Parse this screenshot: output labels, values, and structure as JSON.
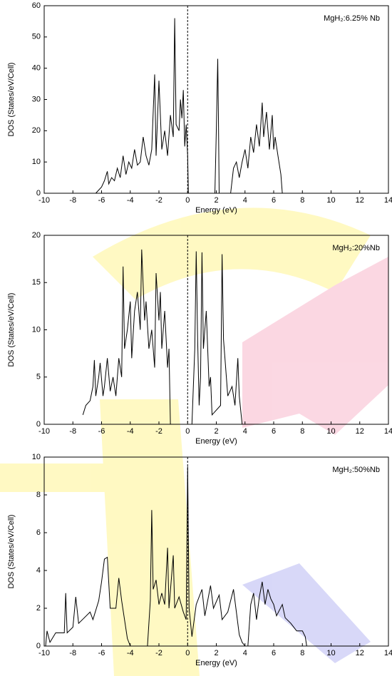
{
  "chart_data": [
    {
      "type": "line",
      "annotation": "MgH₂:6.25% Nb",
      "xlabel": "Energy (eV)",
      "ylabel": "DOS (States/eV/Cell)",
      "x": [
        -6.4,
        -6.0,
        -5.8,
        -5.6,
        -5.5,
        -5.3,
        -5.1,
        -4.9,
        -4.7,
        -4.5,
        -4.3,
        -4.1,
        -3.9,
        -3.7,
        -3.5,
        -3.3,
        -3.1,
        -2.9,
        -2.7,
        -2.5,
        -2.3,
        -2.2,
        -2.0,
        -1.8,
        -1.6,
        -1.4,
        -1.2,
        -1.0,
        -0.9,
        -0.8,
        -0.6,
        -0.5,
        -0.4,
        -0.3,
        -0.2,
        -0.1,
        0.0,
        0.05,
        null,
        1.9,
        2.0,
        2.1,
        2.15,
        2.2,
        null,
        3.0,
        3.2,
        3.4,
        3.6,
        3.8,
        4.0,
        4.2,
        4.4,
        4.6,
        4.8,
        5.0,
        5.2,
        5.3,
        5.5,
        5.7,
        5.9,
        6.0,
        6.1,
        6.3,
        6.5,
        6.6
      ],
      "series": [
        {
          "color": "#000000",
          "values": [
            0,
            2,
            4,
            7,
            3,
            5,
            4,
            8,
            5,
            12,
            6,
            10,
            8,
            14,
            9,
            10,
            18,
            12,
            9,
            14,
            38,
            12,
            36,
            14,
            20,
            12,
            25,
            18,
            56,
            22,
            20,
            30,
            24,
            33,
            15,
            22,
            12,
            0,
            null,
            0,
            20,
            43,
            24,
            0,
            null,
            0,
            8,
            10,
            5,
            10,
            14,
            8,
            18,
            13,
            22,
            15,
            29,
            18,
            26,
            14,
            25,
            14,
            18,
            12,
            6,
            0
          ]
        }
      ],
      "xlim": [
        -10,
        14
      ],
      "ylim": [
        0,
        60
      ],
      "xticks": [
        -10,
        -8,
        -6,
        -4,
        -2,
        0,
        2,
        4,
        6,
        8,
        10,
        12,
        14
      ],
      "yticks": [
        0,
        10,
        20,
        30,
        40,
        50,
        60
      ],
      "vlines": [
        0
      ]
    },
    {
      "type": "line",
      "annotation": "MgH₂:20%Nb",
      "xlabel": "Energy (eV)",
      "ylabel": "DOS (States/eV/Cell)",
      "x": [
        -7.3,
        -7.1,
        -6.8,
        -6.6,
        -6.5,
        -6.4,
        -6.2,
        -6.1,
        -5.9,
        -5.8,
        -5.6,
        -5.4,
        -5.2,
        -5.0,
        -4.8,
        -4.6,
        -4.5,
        -4.4,
        -4.2,
        -4.0,
        -3.9,
        -3.7,
        -3.5,
        -3.3,
        -3.2,
        -3.0,
        -2.9,
        -2.7,
        -2.5,
        -2.3,
        -2.2,
        -2.0,
        -1.9,
        -1.8,
        -1.6,
        -1.4,
        -1.3,
        -1.2,
        null,
        0.3,
        0.5,
        0.6,
        0.7,
        0.8,
        0.9,
        1.0,
        1.1,
        1.3,
        1.5,
        1.6,
        1.7,
        2.3,
        2.4,
        2.5,
        2.8,
        3.1,
        3.3,
        3.5,
        3.6,
        3.8
      ],
      "series": [
        {
          "color": "#000000",
          "values": [
            1,
            2,
            2.5,
            4,
            6.8,
            3,
            5,
            6.5,
            3,
            4,
            7,
            3.5,
            5,
            3,
            7,
            5,
            16.7,
            8,
            10,
            13,
            7,
            12,
            14,
            10,
            18.5,
            11,
            13,
            8,
            10,
            6,
            16,
            11,
            14,
            8,
            12,
            6,
            8,
            0,
            null,
            0,
            8,
            18.3,
            9,
            2,
            5,
            18.2,
            8,
            12,
            4,
            5,
            1,
            2,
            18,
            9,
            3,
            4,
            2,
            7,
            3,
            0
          ]
        }
      ],
      "xlim": [
        -10,
        14
      ],
      "ylim": [
        0,
        20
      ],
      "xticks": [
        -10,
        -8,
        -6,
        -4,
        -2,
        0,
        2,
        4,
        6,
        8,
        10,
        12,
        14
      ],
      "yticks": [
        0,
        5,
        10,
        15,
        20
      ],
      "vlines": [
        0
      ]
    },
    {
      "type": "line",
      "annotation": "MgH₂:50%Nb",
      "xlabel": "Energy (eV)",
      "ylabel": "DOS (States/eV/Cell)",
      "x": [
        -9.9,
        -9.8,
        -9.6,
        -9.2,
        -8.6,
        -8.5,
        -8.4,
        -8.0,
        -7.8,
        -7.6,
        -7.2,
        -6.8,
        -6.6,
        -6.2,
        -6.0,
        -5.8,
        -5.6,
        -5.4,
        -5.0,
        -4.8,
        -4.6,
        -4.2,
        -4.0,
        null,
        -2.8,
        -2.6,
        -2.5,
        -2.4,
        -2.2,
        -2.0,
        -1.8,
        -1.6,
        -1.4,
        -1.3,
        -1.0,
        -0.9,
        -0.6,
        -0.3,
        -0.1,
        0.0,
        0.1,
        0.3,
        0.6,
        1.0,
        1.2,
        1.6,
        1.8,
        2.2,
        2.4,
        2.8,
        3.2,
        3.6,
        3.8,
        4.0,
        null,
        4.2,
        4.4,
        4.6,
        4.8,
        5.0,
        5.2,
        5.4,
        5.6,
        5.8,
        6.0,
        6.2,
        6.6,
        6.8,
        7.2,
        7.6,
        8.0,
        8.2,
        8.3
      ],
      "series": [
        {
          "color": "#000000",
          "values": [
            0,
            0.8,
            0.2,
            0.7,
            0.7,
            2.8,
            0.7,
            1.0,
            2.6,
            1.2,
            1.5,
            1.8,
            1.4,
            2.4,
            3.4,
            4.6,
            4.7,
            2.0,
            2.0,
            3.6,
            2.4,
            0.4,
            0,
            null,
            0,
            2.4,
            7.2,
            3.0,
            3.5,
            2.2,
            2.8,
            2.2,
            5.2,
            2,
            4.8,
            2.0,
            2.6,
            1.8,
            1.4,
            9.5,
            2.0,
            0.5,
            2.2,
            3.0,
            1.6,
            3.2,
            2.0,
            2.7,
            1.4,
            1.8,
            3.0,
            0.6,
            0.2,
            0,
            null,
            0,
            2.2,
            2.8,
            1.4,
            2.6,
            3.4,
            2.2,
            3.0,
            2.5,
            2.2,
            1.6,
            2.2,
            1.5,
            1.2,
            0.8,
            0.8,
            0.5,
            0
          ]
        }
      ],
      "xlim": [
        -10,
        14
      ],
      "ylim": [
        0,
        10
      ],
      "xticks": [
        -10,
        -8,
        -6,
        -4,
        -2,
        0,
        2,
        4,
        6,
        8,
        10,
        12,
        14
      ],
      "yticks": [
        0,
        2,
        4,
        6,
        8,
        10
      ],
      "vlines": [
        0
      ]
    }
  ]
}
